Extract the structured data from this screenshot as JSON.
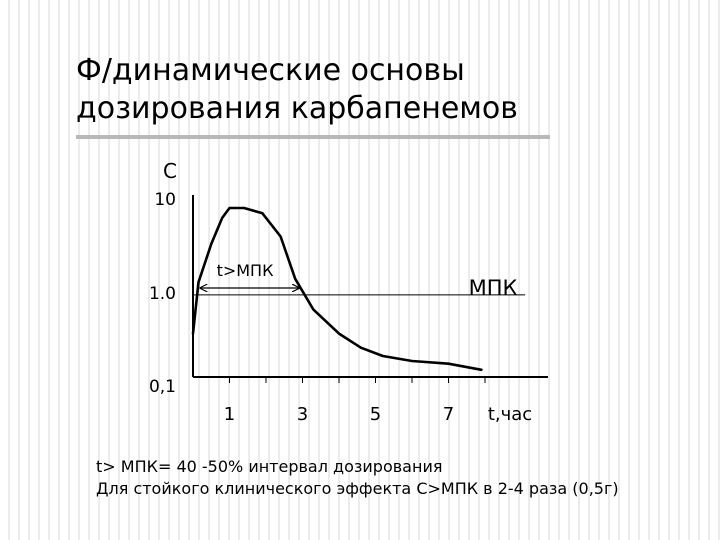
{
  "title_lines": [
    "Ф/динамические основы",
    "дозирования карбапенемов"
  ],
  "chart_data": {
    "type": "line",
    "ylabel": "C",
    "xlabel": "t,час",
    "x_ticks": [
      "1",
      "3",
      "5",
      "7"
    ],
    "y_ticks": [
      "10",
      "1.0",
      "0,1"
    ],
    "yscale": "log",
    "mic_label": "МПК",
    "interval_label": "t>МПК",
    "series": [
      {
        "x": [
          0.0,
          0.15,
          0.5,
          0.8,
          1.0,
          1.4,
          1.9,
          2.4,
          2.8,
          3.3,
          4.0,
          4.6,
          5.2,
          6.0,
          7.0,
          7.9
        ],
        "values": [
          0.3,
          1.1,
          2.9,
          5.6,
          7.2,
          7.2,
          6.3,
          3.5,
          1.2,
          0.55,
          0.3,
          0.21,
          0.17,
          0.15,
          0.14,
          0.12
        ]
      }
    ],
    "mic_value": 0.8
  },
  "footer": {
    "line1": "t> МПК= 40 -50% интервал дозирования",
    "line2": "Для стойкого клинического эффекта С>МПК в 2-4 раза (0,5г)"
  }
}
